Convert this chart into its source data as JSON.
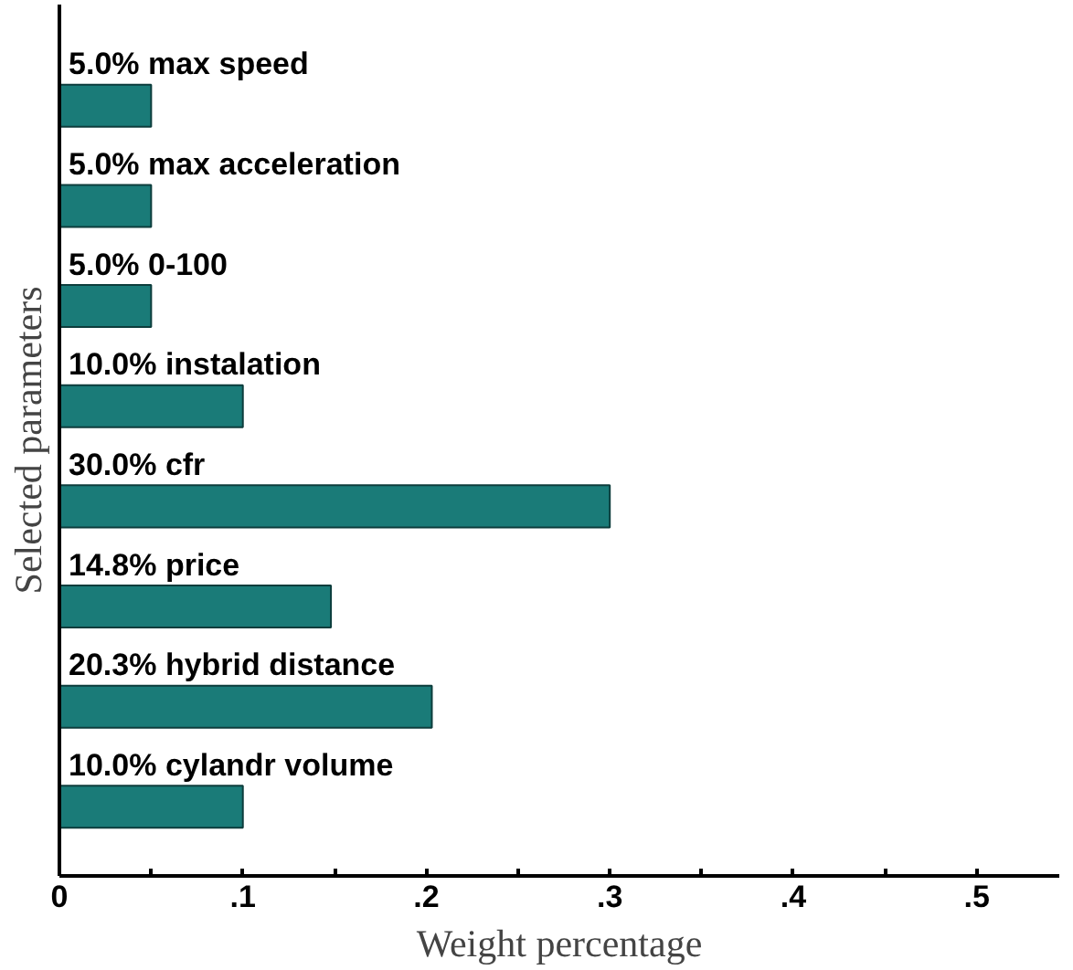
{
  "chart_data": {
    "type": "bar",
    "orientation": "horizontal",
    "xlabel": "Weight percentage",
    "ylabel": "Selected parameters",
    "categories": [
      "max speed",
      "max acceleration",
      "0-100",
      "instalation",
      "cfr",
      "price",
      "hybrid distance",
      "cylandr volume"
    ],
    "values": [
      0.05,
      0.05,
      0.05,
      0.1,
      0.3,
      0.148,
      0.203,
      0.1
    ],
    "value_labels": [
      "5.0%",
      "5.0%",
      "5.0%",
      "10.0%",
      "30.0%",
      "14.8%",
      "20.3%",
      "10.0%"
    ],
    "color": "#1a7b78",
    "xlim": [
      0,
      0.545
    ],
    "xticks": [
      {
        "value": 0,
        "label": "0"
      },
      {
        "value": 0.05,
        "label": null
      },
      {
        "value": 0.1,
        "label": ".1"
      },
      {
        "value": 0.15,
        "label": null
      },
      {
        "value": 0.2,
        "label": ".2"
      },
      {
        "value": 0.25,
        "label": null
      },
      {
        "value": 0.3,
        "label": ".3"
      },
      {
        "value": 0.35,
        "label": null
      },
      {
        "value": 0.4,
        "label": ".4"
      },
      {
        "value": 0.45,
        "label": null
      },
      {
        "value": 0.5,
        "label": ".5"
      }
    ],
    "tick_labels": "x",
    "grid": false
  }
}
